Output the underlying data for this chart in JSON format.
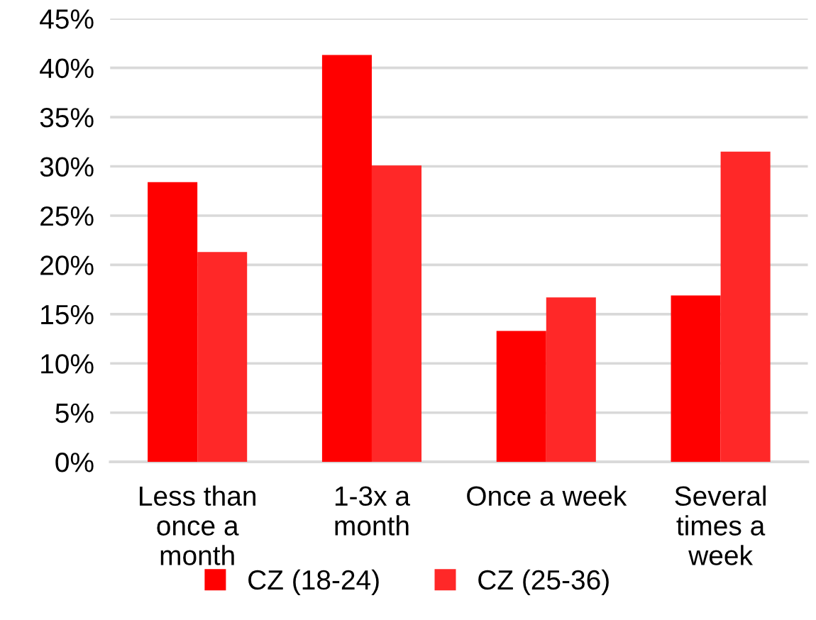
{
  "chart_data": {
    "type": "bar",
    "categories": [
      "Less than\nonce a\nmonth",
      "1-3x a\nmonth",
      "Once a week",
      "Several\ntimes a\nweek"
    ],
    "series": [
      {
        "name": "CZ (18-24)",
        "color": "#ff0000",
        "values": [
          28.4,
          41.3,
          13.3,
          16.9
        ]
      },
      {
        "name": "CZ (25-36)",
        "color": "#ff2828",
        "values": [
          21.3,
          30.1,
          16.7,
          31.5
        ]
      }
    ],
    "ylim": [
      0,
      45
    ],
    "yticks": [
      {
        "value": 0,
        "label": "0%"
      },
      {
        "value": 5,
        "label": "5%"
      },
      {
        "value": 10,
        "label": "10%"
      },
      {
        "value": 15,
        "label": "15%"
      },
      {
        "value": 20,
        "label": "20%"
      },
      {
        "value": 25,
        "label": "25%"
      },
      {
        "value": 30,
        "label": "30%"
      },
      {
        "value": 35,
        "label": "35%"
      },
      {
        "value": 40,
        "label": "40%"
      },
      {
        "value": 45,
        "label": "45%"
      }
    ],
    "grid": "y",
    "legend": "bottom"
  }
}
